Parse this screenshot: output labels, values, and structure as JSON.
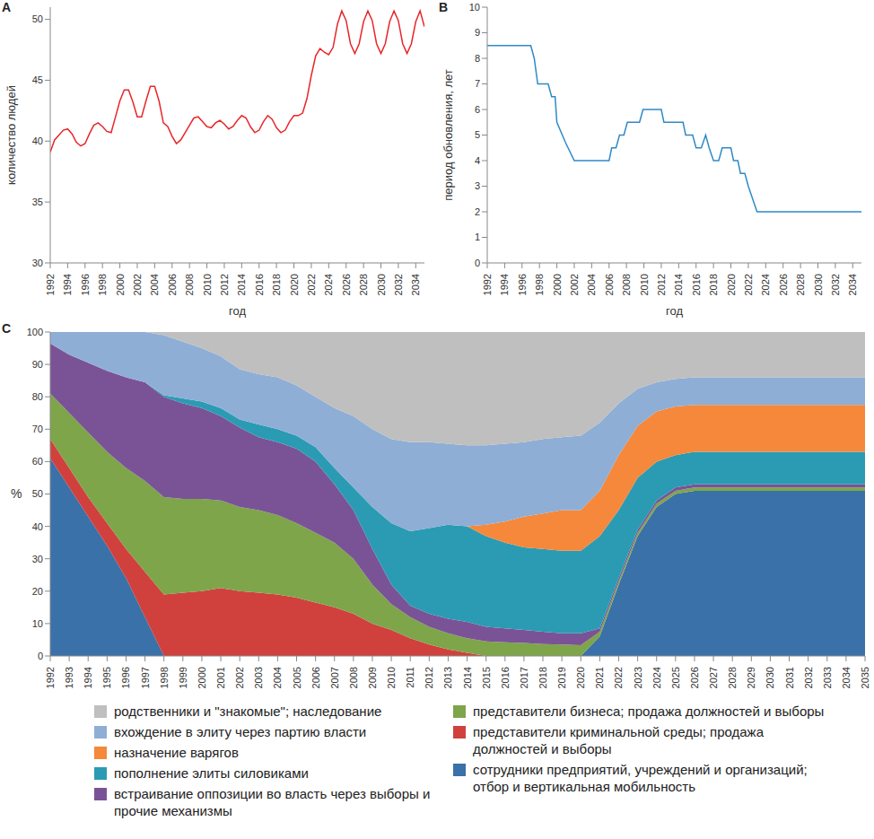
{
  "chart_data": [
    {
      "type": "line",
      "title": "A",
      "x_label": "год",
      "y_label": "количество людей",
      "color": "#e8262a",
      "grid": false,
      "x": [
        1992,
        1992.5,
        1993,
        1993.5,
        1994,
        1994.5,
        1995,
        1995.5,
        1996,
        1996.5,
        1997,
        1997.5,
        1998,
        1998.5,
        1999,
        1999.5,
        2000,
        2000.5,
        2001,
        2001.5,
        2002,
        2002.5,
        2003,
        2003.5,
        2004,
        2004.5,
        2005,
        2005.5,
        2006,
        2006.5,
        2007,
        2007.5,
        2008,
        2008.5,
        2009,
        2009.5,
        2010,
        2010.5,
        2011,
        2011.5,
        2012,
        2012.5,
        2013,
        2013.5,
        2014,
        2014.5,
        2015,
        2015.5,
        2016,
        2016.5,
        2017,
        2017.5,
        2018,
        2018.5,
        2019,
        2019.5,
        2020,
        2020.5,
        2021,
        2021.5,
        2022,
        2022.5,
        2023,
        2023.5,
        2024,
        2024.5,
        2025,
        2025.5,
        2026,
        2026.5,
        2027,
        2027.5,
        2028,
        2028.5,
        2029,
        2029.5,
        2030,
        2030.5,
        2031,
        2031.5,
        2032,
        2032.5,
        2033,
        2033.5,
        2034,
        2034.5,
        2035
      ],
      "values": [
        39.1,
        40.1,
        40.5,
        40.9,
        41.0,
        40.6,
        39.9,
        39.6,
        39.8,
        40.6,
        41.3,
        41.5,
        41.2,
        40.8,
        40.7,
        42.0,
        43.3,
        44.2,
        44.2,
        43.2,
        42.0,
        42.0,
        43.3,
        44.5,
        44.5,
        43.3,
        41.5,
        41.2,
        40.4,
        39.8,
        40.1,
        40.7,
        41.3,
        41.9,
        42.0,
        41.6,
        41.2,
        41.1,
        41.5,
        41.7,
        41.4,
        41.0,
        41.2,
        41.7,
        42.1,
        41.9,
        41.2,
        40.7,
        40.9,
        41.6,
        42.1,
        41.8,
        41.1,
        40.7,
        40.9,
        41.6,
        42.1,
        42.1,
        42.3,
        43.5,
        45.4,
        47.0,
        47.6,
        47.3,
        47.1,
        47.7,
        49.6,
        50.7,
        49.9,
        48.0,
        47.2,
        48.0,
        49.8,
        50.7,
        49.9,
        48.0,
        47.2,
        48.0,
        49.8,
        50.7,
        49.9,
        48.0,
        47.2,
        48.0,
        49.8,
        50.7,
        49.4
      ],
      "xlim": [
        1992,
        2035
      ],
      "xticks": [
        1992,
        1994,
        1996,
        1998,
        2000,
        2002,
        2004,
        2006,
        2008,
        2010,
        2012,
        2014,
        2016,
        2018,
        2020,
        2022,
        2024,
        2026,
        2028,
        2030,
        2032,
        2034
      ],
      "ylim": [
        30,
        51
      ],
      "yticks": [
        30,
        35,
        40,
        45,
        50
      ]
    },
    {
      "type": "line",
      "title": "B",
      "x_label": "год",
      "y_label": "период обновления, лет",
      "color": "#2e8ac6",
      "grid": false,
      "x": [
        1992,
        1997,
        1997.4,
        1997.8,
        1999,
        1999.4,
        1999.8,
        2000,
        2001,
        2002,
        2006,
        2006.3,
        2006.8,
        2007.2,
        2007.7,
        2008.1,
        2009.5,
        2009.9,
        2012,
        2012.3,
        2014.5,
        2014.8,
        2015.6,
        2016,
        2016.6,
        2017.1,
        2017.5,
        2018,
        2018.6,
        2019,
        2020,
        2020.3,
        2020.8,
        2021.1,
        2021.6,
        2022,
        2023,
        2035
      ],
      "values": [
        8.5,
        8.5,
        8,
        7,
        7,
        6.5,
        6.5,
        5.5,
        4.7,
        4,
        4,
        4.5,
        4.5,
        5,
        5,
        5.5,
        5.5,
        6,
        6,
        5.5,
        5.5,
        5,
        5,
        4.5,
        4.5,
        5,
        4.5,
        4,
        4,
        4.5,
        4.5,
        4,
        4,
        3.5,
        3.5,
        3,
        2,
        2
      ],
      "xlim": [
        1992,
        2035
      ],
      "xticks": [
        1992,
        1994,
        1996,
        1998,
        2000,
        2002,
        2004,
        2006,
        2008,
        2010,
        2012,
        2014,
        2016,
        2018,
        2020,
        2022,
        2024,
        2026,
        2028,
        2030,
        2032,
        2034
      ],
      "ylim": [
        0,
        10
      ],
      "yticks": [
        0,
        1,
        2,
        3,
        4,
        5,
        6,
        7,
        8,
        9,
        10
      ]
    },
    {
      "type": "area",
      "title": "C",
      "y_label": "%",
      "stacked": true,
      "grid": false,
      "legend": "bottom",
      "x": [
        1992,
        1993,
        1994,
        1995,
        1996,
        1997,
        1998,
        1999,
        2000,
        2001,
        2002,
        2003,
        2004,
        2005,
        2006,
        2007,
        2008,
        2009,
        2010,
        2011,
        2012,
        2013,
        2014,
        2015,
        2016,
        2017,
        2018,
        2019,
        2020,
        2021,
        2022,
        2023,
        2024,
        2025,
        2026,
        2027,
        2028,
        2029,
        2030,
        2031,
        2032,
        2033,
        2034,
        2035
      ],
      "xlim": [
        1992,
        2035
      ],
      "xticks": [
        1992,
        1993,
        1994,
        1995,
        1996,
        1997,
        1998,
        1999,
        2000,
        2001,
        2002,
        2003,
        2004,
        2005,
        2006,
        2007,
        2008,
        2009,
        2010,
        2011,
        2012,
        2013,
        2014,
        2015,
        2016,
        2017,
        2018,
        2019,
        2020,
        2021,
        2022,
        2023,
        2024,
        2025,
        2026,
        2027,
        2028,
        2029,
        2030,
        2031,
        2032,
        2033,
        2034,
        2035
      ],
      "ylim": [
        0,
        100
      ],
      "yticks": [
        0,
        10,
        20,
        30,
        40,
        50,
        60,
        70,
        80,
        90,
        100
      ],
      "series": [
        {
          "name": "сотрудники предприятий, учреждений и организаций; отбор и вертикальная мобильность",
          "color": "#3a71a8",
          "values": [
            61,
            52,
            43,
            34,
            24,
            12,
            0,
            0,
            0,
            0,
            0,
            0,
            0,
            0,
            0,
            0,
            0,
            0,
            0,
            0,
            0,
            0,
            0,
            0,
            0,
            0,
            0,
            0,
            0,
            6,
            22,
            37,
            46,
            50,
            51,
            51,
            51,
            51,
            51,
            51,
            51,
            51,
            51,
            51
          ]
        },
        {
          "name": "представители криминальной среды; продажа должностей и выборы",
          "color": "#d0413e",
          "values": [
            6,
            6,
            6,
            7,
            9,
            14,
            19,
            19.5,
            20,
            21,
            20,
            19.5,
            19,
            18,
            16.5,
            15,
            13,
            10,
            8,
            5.5,
            3.5,
            2,
            1,
            0,
            0,
            0,
            0,
            0,
            0,
            0,
            0,
            0,
            0,
            0,
            0,
            0,
            0,
            0,
            0,
            0,
            0,
            0,
            0,
            0
          ]
        },
        {
          "name": "представители бизнеса; продажа должностей и выборы",
          "color": "#7ea54a",
          "values": [
            14,
            17,
            20,
            22,
            25,
            28,
            30,
            29,
            28.5,
            27,
            26,
            25.5,
            24.5,
            23,
            21.5,
            20,
            17,
            12,
            8,
            6.5,
            5.5,
            5,
            4.5,
            4.5,
            4.2,
            4,
            3.7,
            3.5,
            3.3,
            1.5,
            1,
            1,
            1,
            1,
            1,
            1,
            1,
            1,
            1,
            1,
            1,
            1,
            1,
            1
          ]
        },
        {
          "name": "встраивание оппозиции во власть через выборы и прочие механизмы",
          "color": "#7a5397",
          "values": [
            15.5,
            18,
            21.5,
            25,
            28,
            30.5,
            31,
            29.5,
            28,
            26,
            24.5,
            22.5,
            22.5,
            23,
            22,
            18,
            15,
            11,
            6,
            3.5,
            4,
            4.5,
            5,
            4.5,
            4.3,
            4,
            3.8,
            3.5,
            3.7,
            1,
            1,
            1,
            1,
            1,
            1,
            1,
            1,
            1,
            1,
            1,
            1,
            1,
            1,
            1
          ]
        },
        {
          "name": "пополнение элиты силовиками",
          "color": "#2b9bb3",
          "values": [
            0,
            0,
            0,
            0,
            0,
            0,
            0.5,
            1.5,
            2,
            2.5,
            2.5,
            4,
            4,
            4,
            4.5,
            5,
            7,
            13,
            19,
            23,
            26.5,
            29,
            29.5,
            28,
            26.5,
            25.5,
            25.5,
            25.5,
            25.5,
            28.5,
            21,
            16,
            12,
            10,
            10,
            10,
            10,
            10,
            10,
            10,
            10,
            10,
            10,
            10
          ]
        },
        {
          "name": "назначение варягов",
          "color": "#f5883a",
          "values": [
            0,
            0,
            0,
            0,
            0,
            0,
            0,
            0,
            0,
            0,
            0,
            0,
            0,
            0,
            0,
            0,
            0,
            0,
            0,
            0,
            0,
            0,
            0,
            3.5,
            6.5,
            9.5,
            11,
            12.5,
            12.5,
            14,
            17,
            16,
            15.5,
            15,
            14.5,
            14.5,
            14.5,
            14.5,
            14.5,
            14.5,
            14.5,
            14.5,
            14.5,
            14.5
          ]
        },
        {
          "name": "вхождение в элиту через партию власти",
          "color": "#8eaed6",
          "values": [
            3.5,
            7,
            9.5,
            12,
            14,
            15.5,
            18.5,
            17.5,
            16.5,
            16,
            15.5,
            15.5,
            16,
            15.5,
            15.5,
            18.5,
            22,
            24,
            26,
            27.5,
            26.5,
            25,
            25,
            24.5,
            24,
            23,
            23,
            22.5,
            23,
            21,
            16,
            11.5,
            9,
            8.5,
            8.5,
            8.5,
            8.5,
            8.5,
            8.5,
            8.5,
            8.5,
            8.5,
            8.5,
            8.5
          ]
        },
        {
          "name": "родственники и \"знакомые\"; наследование",
          "color": "#bfbfbf",
          "values": [
            0,
            0,
            0,
            0,
            0,
            0,
            1,
            3,
            5,
            7.5,
            11.5,
            13,
            14,
            16.5,
            20,
            23.5,
            26,
            30,
            33,
            34,
            34,
            34.5,
            35,
            35,
            34.5,
            34,
            33,
            32.5,
            32,
            28,
            22,
            17.5,
            15.5,
            14.5,
            14,
            14,
            14,
            14,
            14,
            14,
            14,
            14,
            14,
            14
          ]
        }
      ]
    }
  ]
}
